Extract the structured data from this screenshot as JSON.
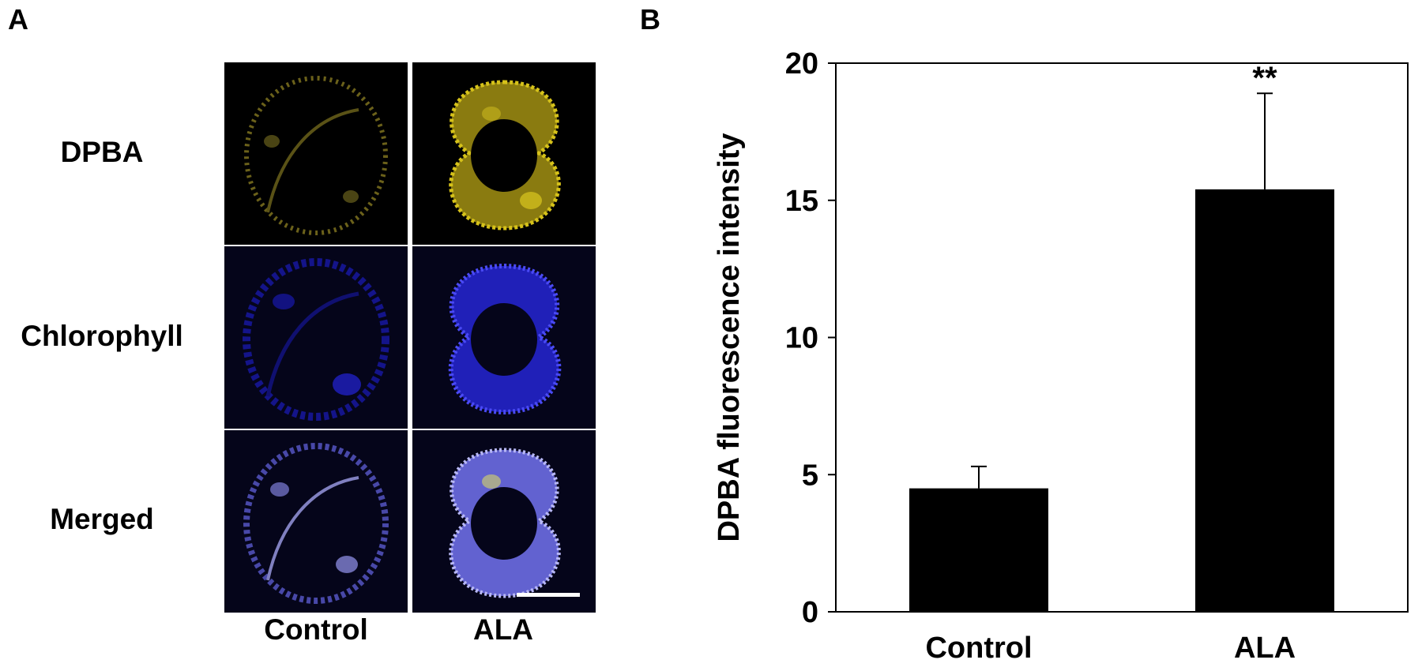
{
  "panel_a": {
    "letter": "A",
    "row_labels": [
      "DPBA",
      "Chlorophyll",
      "Merged"
    ],
    "col_labels": [
      "Control",
      "ALA"
    ],
    "colors": {
      "dpba": "#d6c21a",
      "chlorophyll": "#2323e6",
      "merged": "#9a9af0"
    }
  },
  "panel_b": {
    "letter": "B"
  },
  "chart_data": {
    "type": "bar",
    "categories": [
      "Control",
      "ALA"
    ],
    "values": [
      4.5,
      15.4
    ],
    "error": [
      0.8,
      3.5
    ],
    "annotations": [
      "",
      "**"
    ],
    "ylabel": "DPBA fluorescence intensity",
    "xlabel": "",
    "title": "",
    "ylim": [
      0,
      20
    ],
    "yticks": [
      0,
      5,
      10,
      15,
      20
    ],
    "grid": false,
    "bar_color": "#000000"
  }
}
